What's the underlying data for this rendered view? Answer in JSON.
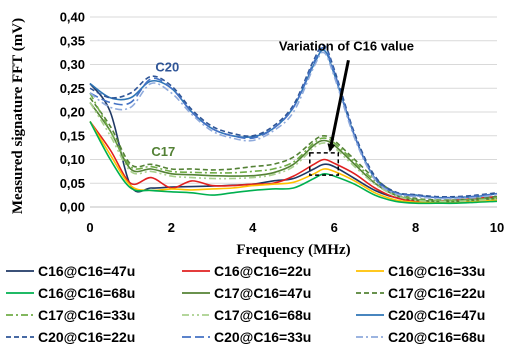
{
  "chart_data": {
    "type": "line",
    "title": "",
    "xlabel": "Frequency (MHz)",
    "ylabel": "Measured signature FFT (mV)",
    "xlim": [
      0,
      10
    ],
    "ylim": [
      0,
      0.4
    ],
    "xticks": [
      0,
      2,
      4,
      6,
      8,
      10
    ],
    "xtick_labels": [
      "0",
      "2",
      "4",
      "6",
      "8",
      "10"
    ],
    "yticks": [
      0,
      0.05,
      0.1,
      0.15,
      0.2,
      0.25,
      0.3,
      0.35,
      0.4
    ],
    "ytick_labels": [
      "0,00",
      "0,05",
      "0,10",
      "0,15",
      "0,20",
      "0,25",
      "0,30",
      "0,35",
      "0,40"
    ],
    "grid": "horizontal",
    "legend_position": "bottom",
    "annotations": [
      {
        "text": "C20",
        "color": "#2f5597",
        "anchor_x": 1.9,
        "anchor_y": 0.285
      },
      {
        "text": "C17",
        "color": "#538135",
        "anchor_x": 1.8,
        "anchor_y": 0.107
      },
      {
        "text": "Variation of C16 value",
        "color": "#000000",
        "anchor_x": 6.3,
        "anchor_y": 0.33,
        "arrow_to_x": 5.9,
        "arrow_to_y": 0.12
      },
      {
        "text": "",
        "type": "dashed-box",
        "x0": 5.4,
        "x1": 6.1,
        "y0": 0.067,
        "y1": 0.114
      }
    ],
    "x": [
      0,
      0.5,
      1,
      1.5,
      2,
      2.5,
      3,
      3.5,
      4,
      4.5,
      5,
      5.5,
      5.75,
      6,
      6.5,
      7,
      7.5,
      8,
      8.5,
      9,
      9.5,
      10
    ],
    "series": [
      {
        "name": "C16@C16=47u",
        "color": "#1f3864",
        "dash": "solid",
        "values": [
          0.26,
          0.2,
          0.045,
          0.04,
          0.042,
          0.043,
          0.044,
          0.046,
          0.048,
          0.055,
          0.06,
          0.08,
          0.09,
          0.085,
          0.06,
          0.035,
          0.02,
          0.015,
          0.012,
          0.012,
          0.015,
          0.02
        ]
      },
      {
        "name": "C16@C16=22u",
        "color": "#e02020",
        "dash": "solid",
        "values": [
          0.18,
          0.12,
          0.05,
          0.062,
          0.04,
          0.055,
          0.045,
          0.045,
          0.048,
          0.05,
          0.065,
          0.09,
          0.1,
          0.092,
          0.07,
          0.04,
          0.02,
          0.012,
          0.012,
          0.015,
          0.018,
          0.022
        ]
      },
      {
        "name": "C16@C16=33u",
        "color": "#ffc000",
        "dash": "solid",
        "values": [
          0.18,
          0.11,
          0.045,
          0.035,
          0.038,
          0.036,
          0.038,
          0.04,
          0.045,
          0.048,
          0.052,
          0.07,
          0.08,
          0.075,
          0.055,
          0.03,
          0.015,
          0.01,
          0.01,
          0.01,
          0.012,
          0.015
        ]
      },
      {
        "name": "C16@C16=68u",
        "color": "#00b050",
        "dash": "solid",
        "values": [
          0.18,
          0.1,
          0.04,
          0.035,
          0.032,
          0.03,
          0.025,
          0.03,
          0.035,
          0.038,
          0.04,
          0.06,
          0.07,
          0.065,
          0.048,
          0.025,
          0.012,
          0.008,
          0.008,
          0.008,
          0.01,
          0.012
        ]
      },
      {
        "name": "C17@C16=47u",
        "color": "#548235",
        "dash": "solid",
        "values": [
          0.22,
          0.16,
          0.08,
          0.08,
          0.07,
          0.068,
          0.066,
          0.065,
          0.066,
          0.072,
          0.09,
          0.13,
          0.14,
          0.13,
          0.09,
          0.05,
          0.025,
          0.015,
          0.012,
          0.012,
          0.015,
          0.018
        ]
      },
      {
        "name": "C17@C16=22u",
        "color": "#548235",
        "dash": "dash",
        "values": [
          0.23,
          0.17,
          0.09,
          0.09,
          0.08,
          0.08,
          0.078,
          0.08,
          0.085,
          0.09,
          0.105,
          0.14,
          0.15,
          0.14,
          0.1,
          0.06,
          0.03,
          0.018,
          0.015,
          0.015,
          0.018,
          0.022
        ]
      },
      {
        "name": "C17@C16=33u",
        "color": "#70ad47",
        "dash": "dashdot",
        "values": [
          0.24,
          0.16,
          0.085,
          0.085,
          0.075,
          0.073,
          0.072,
          0.072,
          0.075,
          0.08,
          0.095,
          0.135,
          0.145,
          0.135,
          0.095,
          0.055,
          0.028,
          0.016,
          0.014,
          0.014,
          0.016,
          0.02
        ]
      },
      {
        "name": "C17@C16=68u",
        "color": "#a9d08e",
        "dash": "dashdotdot",
        "values": [
          0.22,
          0.15,
          0.075,
          0.075,
          0.065,
          0.062,
          0.06,
          0.06,
          0.062,
          0.068,
          0.085,
          0.125,
          0.135,
          0.125,
          0.085,
          0.048,
          0.024,
          0.014,
          0.012,
          0.012,
          0.014,
          0.017
        ]
      },
      {
        "name": "C20@C16=47u",
        "color": "#2e75b6",
        "dash": "solid",
        "values": [
          0.26,
          0.23,
          0.23,
          0.265,
          0.25,
          0.2,
          0.165,
          0.15,
          0.148,
          0.165,
          0.21,
          0.3,
          0.33,
          0.28,
          0.15,
          0.06,
          0.03,
          0.025,
          0.02,
          0.02,
          0.022,
          0.028
        ]
      },
      {
        "name": "C20@C16=22u",
        "color": "#2f5597",
        "dash": "dash",
        "values": [
          0.25,
          0.23,
          0.24,
          0.275,
          0.255,
          0.205,
          0.17,
          0.155,
          0.15,
          0.17,
          0.215,
          0.31,
          0.34,
          0.29,
          0.155,
          0.065,
          0.032,
          0.026,
          0.022,
          0.022,
          0.025,
          0.03
        ]
      },
      {
        "name": "C20@C16=33u",
        "color": "#4472c4",
        "dash": "longdash",
        "values": [
          0.24,
          0.22,
          0.22,
          0.27,
          0.25,
          0.2,
          0.165,
          0.15,
          0.145,
          0.165,
          0.21,
          0.305,
          0.335,
          0.285,
          0.15,
          0.06,
          0.03,
          0.024,
          0.02,
          0.02,
          0.023,
          0.028
        ]
      },
      {
        "name": "C20@C16=68u",
        "color": "#8faadc",
        "dash": "dashdot",
        "values": [
          0.24,
          0.21,
          0.21,
          0.26,
          0.24,
          0.195,
          0.16,
          0.145,
          0.14,
          0.16,
          0.2,
          0.295,
          0.325,
          0.275,
          0.145,
          0.058,
          0.028,
          0.022,
          0.018,
          0.018,
          0.02,
          0.026
        ]
      }
    ]
  }
}
